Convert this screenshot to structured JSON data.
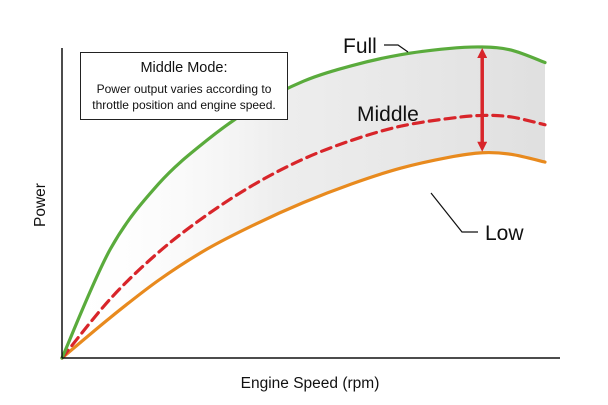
{
  "chart_data": {
    "type": "line",
    "xlabel": "Engine Speed (rpm)",
    "ylabel": "Power",
    "annotation": {
      "title": "Middle Mode:",
      "body_line1": "Power output varies according to",
      "body_line2": "throttle position and engine speed."
    },
    "series": [
      {
        "name": "Full",
        "color": "#5aab3c",
        "style": "solid",
        "x": [
          0,
          0.1,
          0.2,
          0.3,
          0.4,
          0.5,
          0.6,
          0.7,
          0.8,
          0.87,
          0.93,
          1.0
        ],
        "values": [
          0,
          0.35,
          0.56,
          0.7,
          0.81,
          0.89,
          0.94,
          0.975,
          0.995,
          1.0,
          0.99,
          0.95
        ]
      },
      {
        "name": "Middle",
        "color": "#d8252a",
        "style": "dashed",
        "x": [
          0,
          0.1,
          0.2,
          0.3,
          0.4,
          0.5,
          0.6,
          0.7,
          0.8,
          0.87,
          0.93,
          1.0
        ],
        "values": [
          0,
          0.19,
          0.34,
          0.46,
          0.56,
          0.64,
          0.7,
          0.745,
          0.77,
          0.78,
          0.775,
          0.75
        ]
      },
      {
        "name": "Low",
        "color": "#e88a1e",
        "style": "solid",
        "x": [
          0,
          0.1,
          0.2,
          0.3,
          0.4,
          0.5,
          0.6,
          0.7,
          0.8,
          0.87,
          0.93,
          1.0
        ],
        "values": [
          0,
          0.13,
          0.25,
          0.35,
          0.43,
          0.5,
          0.56,
          0.61,
          0.645,
          0.66,
          0.655,
          0.63
        ]
      }
    ],
    "arrow_color": "#d8252a",
    "band_color": "#e3e3e3"
  }
}
